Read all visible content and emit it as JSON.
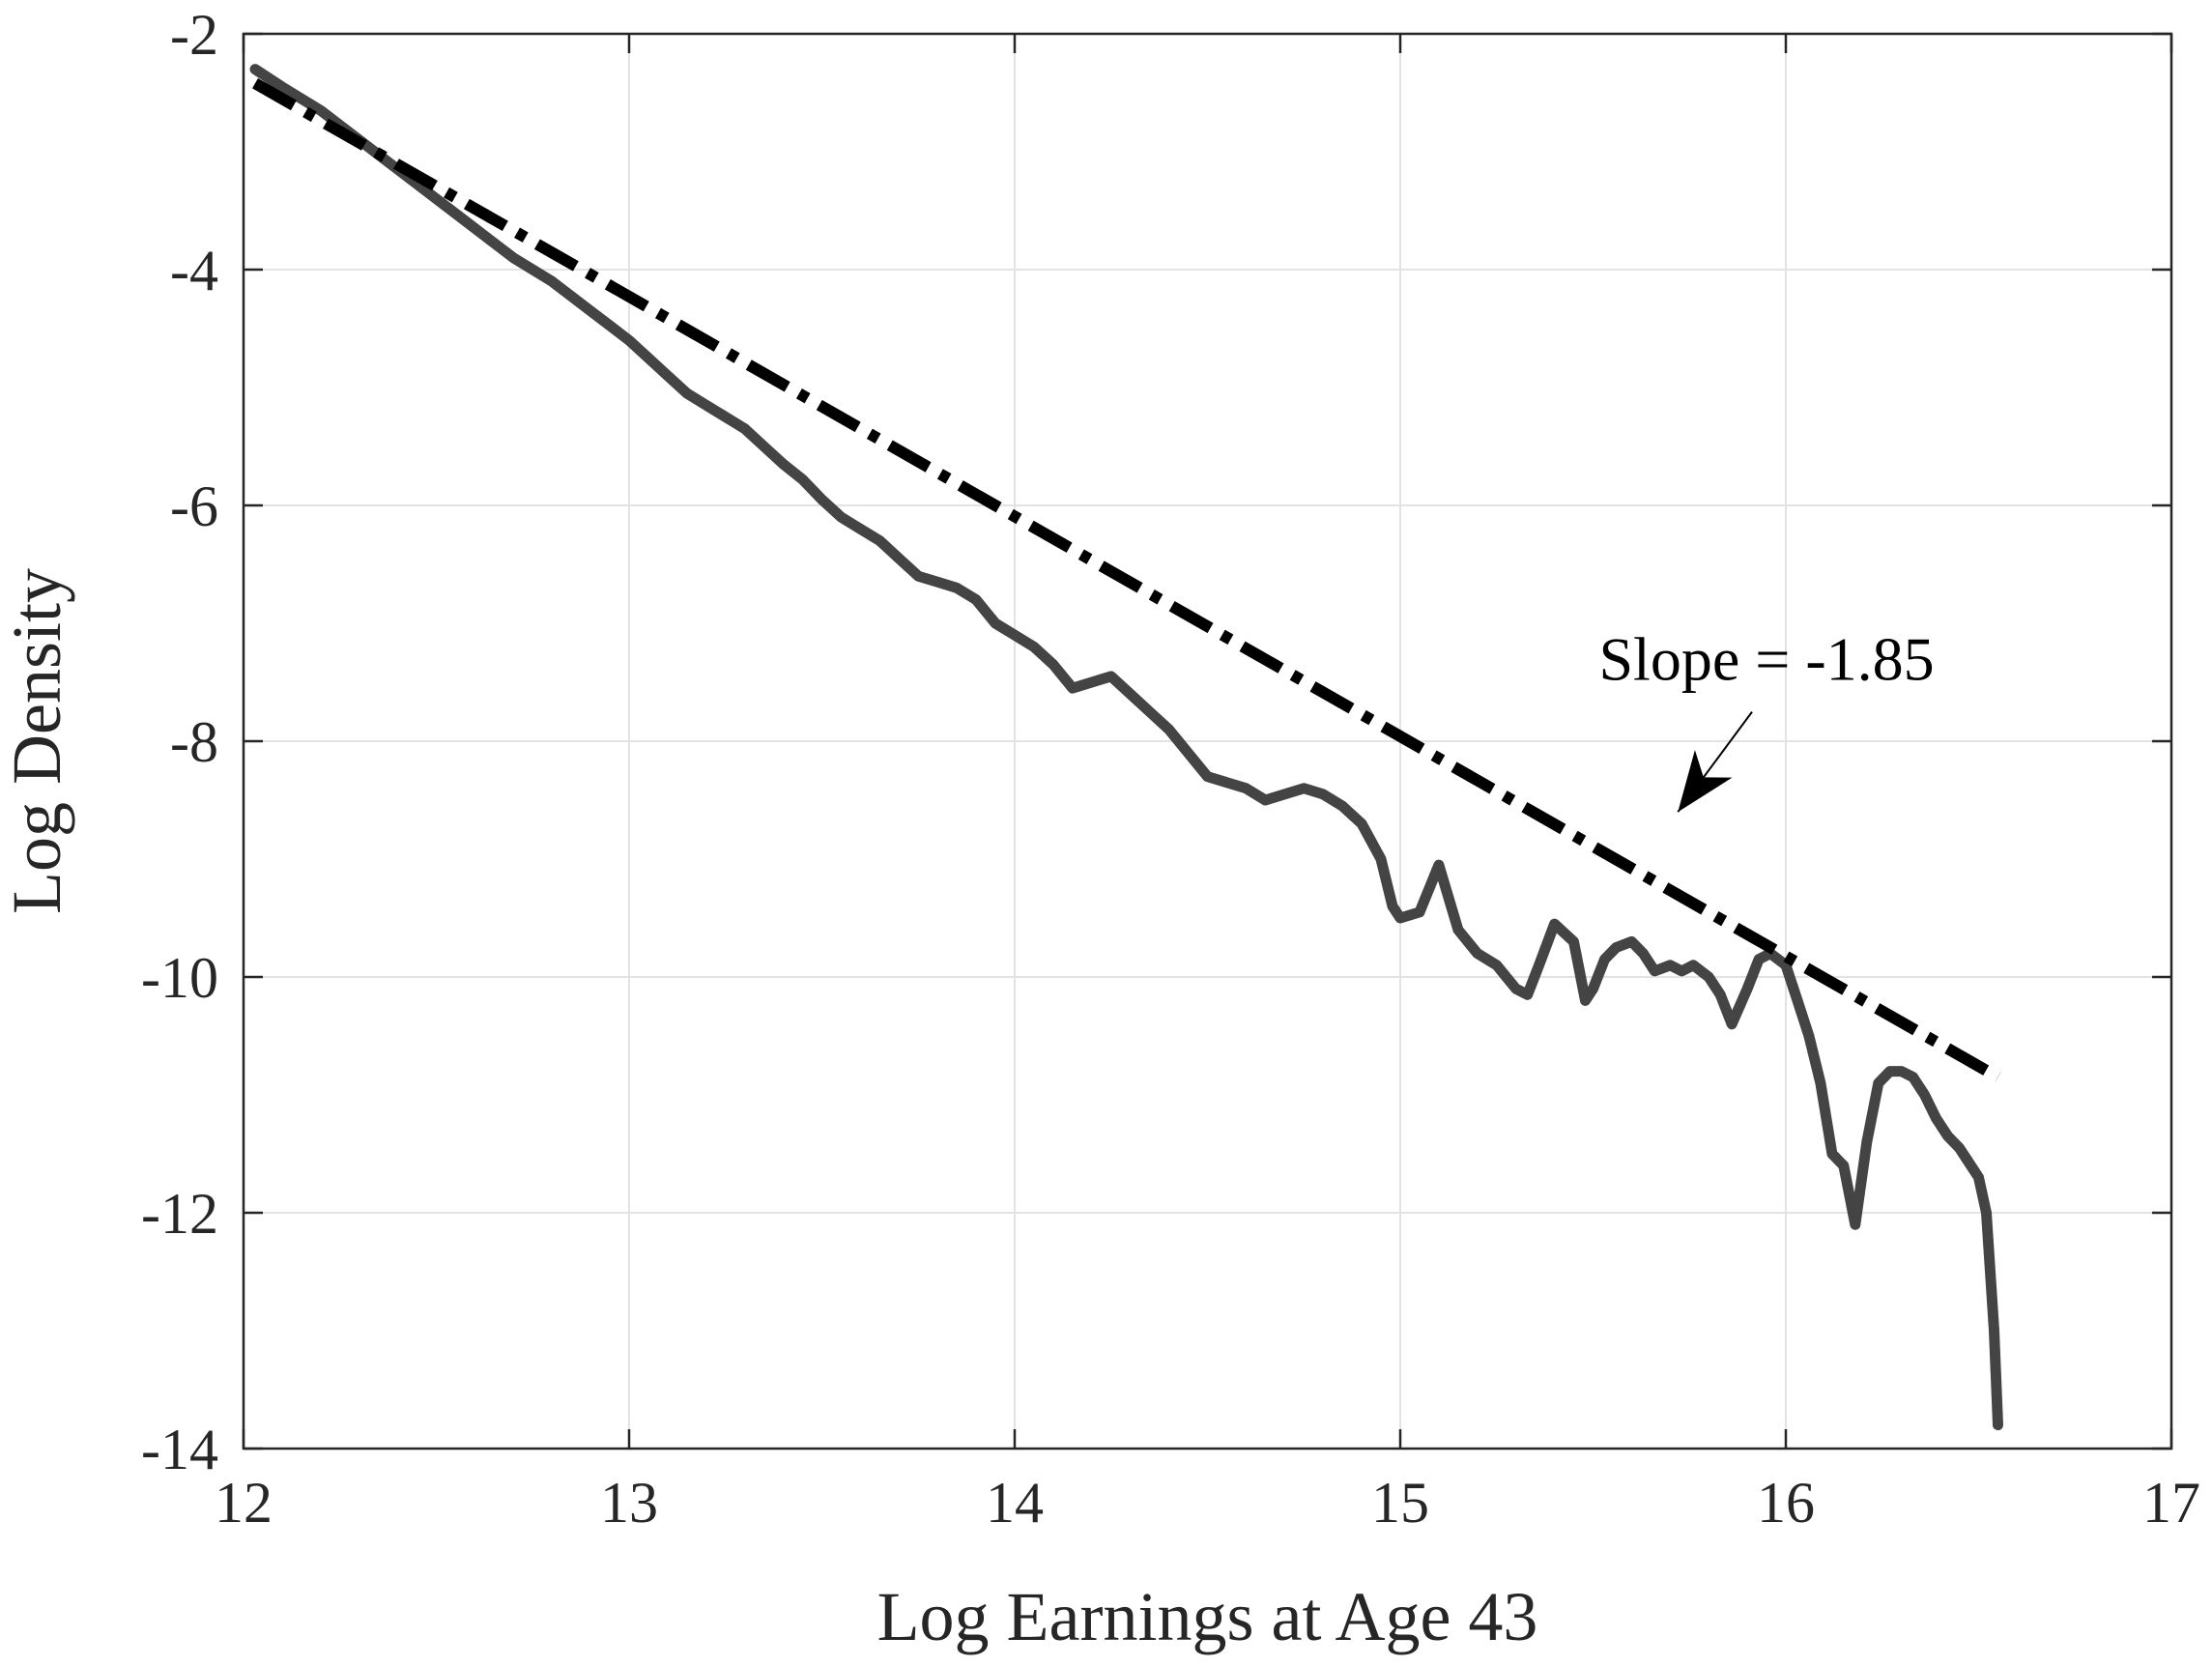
{
  "chart_data": {
    "type": "line",
    "title": "",
    "xlabel": "Log Earnings at Age 43",
    "ylabel": "Log Density",
    "xlim": [
      12,
      17
    ],
    "ylim": [
      -14,
      -2
    ],
    "xticks": [
      12,
      13,
      14,
      15,
      16,
      17
    ],
    "yticks": [
      -2,
      -4,
      -6,
      -8,
      -10,
      -12,
      -14
    ],
    "xtick_labels": [
      "12",
      "13",
      "14",
      "15",
      "16",
      "17"
    ],
    "ytick_labels": [
      "-2",
      "-4",
      "-6",
      "-8",
      "-10",
      "-12",
      "-14"
    ],
    "grid": true,
    "legend": "none",
    "series": [
      {
        "style": "solid",
        "color": "#444444",
        "x": [
          12.03,
          12.1,
          12.2,
          12.3,
          12.4,
          12.5,
          12.6,
          12.7,
          12.8,
          12.9,
          13.0,
          13.1,
          13.15,
          13.2,
          13.25,
          13.3,
          13.35,
          13.4,
          13.45,
          13.5,
          13.55,
          13.6,
          13.65,
          13.7,
          13.75,
          13.8,
          13.85,
          13.9,
          13.95,
          14.0,
          14.05,
          14.1,
          14.15,
          14.2,
          14.25,
          14.3,
          14.35,
          14.4,
          14.45,
          14.5,
          14.55,
          14.6,
          14.65,
          14.7,
          14.75,
          14.8,
          14.85,
          14.9,
          14.95,
          14.98,
          15.0,
          15.05,
          15.1,
          15.15,
          15.2,
          15.25,
          15.3,
          15.33,
          15.36,
          15.4,
          15.45,
          15.48,
          15.5,
          15.53,
          15.56,
          15.6,
          15.63,
          15.66,
          15.7,
          15.73,
          15.76,
          15.8,
          15.83,
          15.86,
          15.9,
          15.93,
          15.96,
          16.0,
          16.03,
          16.06,
          16.09,
          16.12,
          16.15,
          16.18,
          16.21,
          16.24,
          16.27,
          16.3,
          16.33,
          16.36,
          16.39,
          16.42,
          16.45,
          16.48,
          16.5,
          16.52,
          16.54,
          16.55
        ],
        "y": [
          -2.3,
          -2.45,
          -2.65,
          -2.9,
          -3.15,
          -3.4,
          -3.65,
          -3.9,
          -4.1,
          -4.35,
          -4.6,
          -4.9,
          -5.05,
          -5.15,
          -5.25,
          -5.35,
          -5.5,
          -5.65,
          -5.78,
          -5.95,
          -6.1,
          -6.2,
          -6.3,
          -6.45,
          -6.6,
          -6.65,
          -6.7,
          -6.8,
          -7.0,
          -7.1,
          -7.2,
          -7.35,
          -7.55,
          -7.5,
          -7.45,
          -7.6,
          -7.75,
          -7.9,
          -8.1,
          -8.3,
          -8.35,
          -8.4,
          -8.5,
          -8.45,
          -8.4,
          -8.45,
          -8.55,
          -8.7,
          -9.0,
          -9.4,
          -9.5,
          -9.45,
          -9.05,
          -9.6,
          -9.8,
          -9.9,
          -10.1,
          -10.15,
          -9.9,
          -9.55,
          -9.7,
          -10.2,
          -10.1,
          -9.85,
          -9.75,
          -9.7,
          -9.8,
          -9.95,
          -9.9,
          -9.95,
          -9.9,
          -10.0,
          -10.15,
          -10.4,
          -10.1,
          -9.85,
          -9.8,
          -9.9,
          -10.2,
          -10.5,
          -10.9,
          -11.5,
          -11.6,
          -12.1,
          -11.4,
          -10.9,
          -10.8,
          -10.8,
          -10.85,
          -11.0,
          -11.2,
          -11.35,
          -11.45,
          -11.6,
          -11.7,
          -12.0,
          -13.0,
          -13.8
        ]
      },
      {
        "style": "dash-dot",
        "color": "#000000",
        "x": [
          12.03,
          16.55
        ],
        "y": [
          -2.42,
          -10.85
        ]
      }
    ],
    "annotations": [
      {
        "text": "Slope = -1.85",
        "x": 15.95,
        "y": -7.3,
        "arrow_to": [
          15.72,
          -8.6
        ]
      }
    ]
  }
}
